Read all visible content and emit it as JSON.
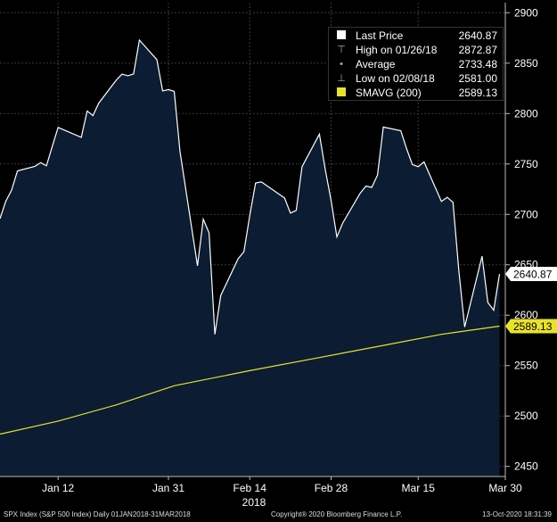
{
  "chart_data": {
    "type": "line",
    "instrument": "SPX Index",
    "ylim": [
      2440,
      2910
    ],
    "yticks": [
      2450,
      2500,
      2550,
      2600,
      2650,
      2700,
      2750,
      2800,
      2850,
      2900
    ],
    "xlim": [
      "2018-01-02",
      "2018-03-30"
    ],
    "xticks": [
      {
        "date": "2018-01-12",
        "label": "Jan 12"
      },
      {
        "date": "2018-01-31",
        "label": "Jan 31"
      },
      {
        "date": "2018-02-14",
        "label": "Feb 14"
      },
      {
        "date": "2018-02-28",
        "label": "Feb 28"
      },
      {
        "date": "2018-03-15",
        "label": "Mar 15"
      },
      {
        "date": "2018-03-30",
        "label": "Mar 30"
      }
    ],
    "year_label": "2018",
    "grid": true,
    "series": [
      {
        "name": "Last Price",
        "color": "#ffffff",
        "fill": "#0b1c33",
        "points": [
          [
            "2018-01-02",
            2695.81
          ],
          [
            "2018-01-03",
            2713.06
          ],
          [
            "2018-01-04",
            2723.99
          ],
          [
            "2018-01-05",
            2743.15
          ],
          [
            "2018-01-08",
            2747.71
          ],
          [
            "2018-01-09",
            2751.29
          ],
          [
            "2018-01-10",
            2748.23
          ],
          [
            "2018-01-11",
            2767.56
          ],
          [
            "2018-01-12",
            2786.24
          ],
          [
            "2018-01-16",
            2776.42
          ],
          [
            "2018-01-17",
            2802.56
          ],
          [
            "2018-01-18",
            2798.03
          ],
          [
            "2018-01-19",
            2810.3
          ],
          [
            "2018-01-22",
            2832.97
          ],
          [
            "2018-01-23",
            2839.13
          ],
          [
            "2018-01-24",
            2837.54
          ],
          [
            "2018-01-25",
            2839.25
          ],
          [
            "2018-01-26",
            2872.87
          ],
          [
            "2018-01-29",
            2853.53
          ],
          [
            "2018-01-30",
            2822.43
          ],
          [
            "2018-01-31",
            2823.81
          ],
          [
            "2018-02-01",
            2821.98
          ],
          [
            "2018-02-02",
            2762.13
          ],
          [
            "2018-02-05",
            2648.94
          ],
          [
            "2018-02-06",
            2695.14
          ],
          [
            "2018-02-07",
            2681.66
          ],
          [
            "2018-02-08",
            2581.0
          ],
          [
            "2018-02-09",
            2619.55
          ],
          [
            "2018-02-12",
            2656.0
          ],
          [
            "2018-02-13",
            2662.94
          ],
          [
            "2018-02-14",
            2698.63
          ],
          [
            "2018-02-15",
            2731.2
          ],
          [
            "2018-02-16",
            2732.22
          ],
          [
            "2018-02-20",
            2716.26
          ],
          [
            "2018-02-21",
            2701.33
          ],
          [
            "2018-02-22",
            2703.96
          ],
          [
            "2018-02-23",
            2747.3
          ],
          [
            "2018-02-26",
            2779.6
          ],
          [
            "2018-02-27",
            2744.28
          ],
          [
            "2018-02-28",
            2713.83
          ],
          [
            "2018-03-01",
            2677.67
          ],
          [
            "2018-03-02",
            2691.25
          ],
          [
            "2018-03-05",
            2720.94
          ],
          [
            "2018-03-06",
            2728.12
          ],
          [
            "2018-03-07",
            2726.8
          ],
          [
            "2018-03-08",
            2738.97
          ],
          [
            "2018-03-09",
            2786.57
          ],
          [
            "2018-03-12",
            2783.02
          ],
          [
            "2018-03-13",
            2765.31
          ],
          [
            "2018-03-14",
            2749.48
          ],
          [
            "2018-03-15",
            2747.33
          ],
          [
            "2018-03-16",
            2752.01
          ],
          [
            "2018-03-19",
            2712.92
          ],
          [
            "2018-03-20",
            2716.94
          ],
          [
            "2018-03-21",
            2711.93
          ],
          [
            "2018-03-22",
            2643.69
          ],
          [
            "2018-03-23",
            2588.26
          ],
          [
            "2018-03-26",
            2658.55
          ],
          [
            "2018-03-27",
            2612.62
          ],
          [
            "2018-03-28",
            2605.0
          ],
          [
            "2018-03-29",
            2640.87
          ]
        ]
      },
      {
        "name": "SMAVG (200)",
        "color": "#e8e32a",
        "points": [
          [
            "2018-01-02",
            2482
          ],
          [
            "2018-01-12",
            2495
          ],
          [
            "2018-01-22",
            2511
          ],
          [
            "2018-02-01",
            2530
          ],
          [
            "2018-02-14",
            2545
          ],
          [
            "2018-02-26",
            2558
          ],
          [
            "2018-03-09",
            2570
          ],
          [
            "2018-03-19",
            2581
          ],
          [
            "2018-03-29",
            2589.13
          ]
        ]
      }
    ],
    "price_tags": [
      {
        "value": 2640.87,
        "label": "2640.87",
        "bg": "#ffffff",
        "fg": "#000000"
      },
      {
        "value": 2589.13,
        "label": "2589.13",
        "bg": "#e8e32a",
        "fg": "#000000"
      }
    ]
  },
  "legend": {
    "rows": [
      {
        "icon": "square-swatch-icon",
        "color": "#ffffff",
        "label": "Last Price",
        "value": "2640.87"
      },
      {
        "icon": "high-marker-icon",
        "color": "#aaaaaa",
        "label": "High on 01/26/18",
        "value": "2872.87"
      },
      {
        "icon": "average-marker-icon",
        "color": "#aaaaaa",
        "label": "Average",
        "value": "2733.48"
      },
      {
        "icon": "low-marker-icon",
        "color": "#aaaaaa",
        "label": "Low on 02/08/18",
        "value": "2581.00"
      },
      {
        "icon": "square-swatch-icon",
        "color": "#e8e32a",
        "label": "SMAVG (200)",
        "value": "2589.13"
      }
    ]
  },
  "footer": {
    "left": "SPX Index (S&P 500 Index)  Daily 01JAN2018-31MAR2018",
    "center": "Copyright® 2020 Bloomberg Finance L.P.",
    "right": "13-Oct-2020 18:31:39"
  }
}
